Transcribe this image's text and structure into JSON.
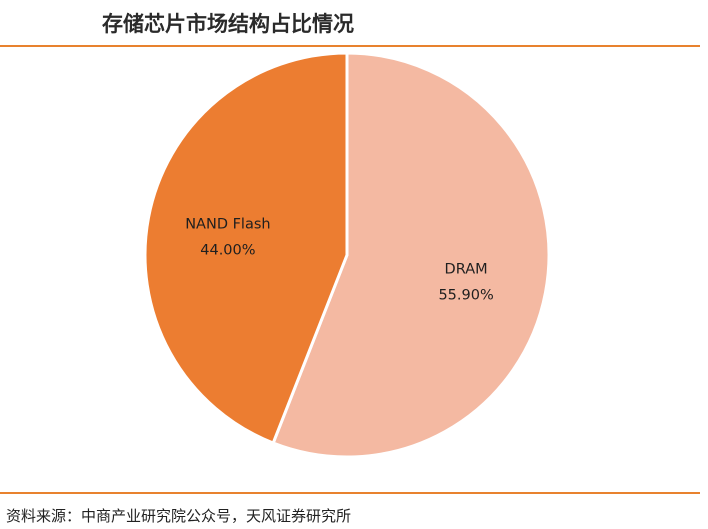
{
  "title": "存储芯片市场结构占比情况",
  "source": "资料来源：中商产业研究院公众号，天风证券研究所",
  "colors": {
    "rule": "#e8822e",
    "slice_border": "#ffffff"
  },
  "chart_data": {
    "type": "pie",
    "title": "存储芯片市场结构占比情况",
    "unit": "%",
    "slices": [
      {
        "name": "DRAM",
        "value": 55.9,
        "label": "55.90%",
        "color": "#f4b9a2"
      },
      {
        "name": "NAND Flash",
        "value": 44.0,
        "label": "44.00%",
        "color": "#ec7d31"
      }
    ],
    "start_angle_deg": 0,
    "direction": "clockwise",
    "legend": "none"
  }
}
